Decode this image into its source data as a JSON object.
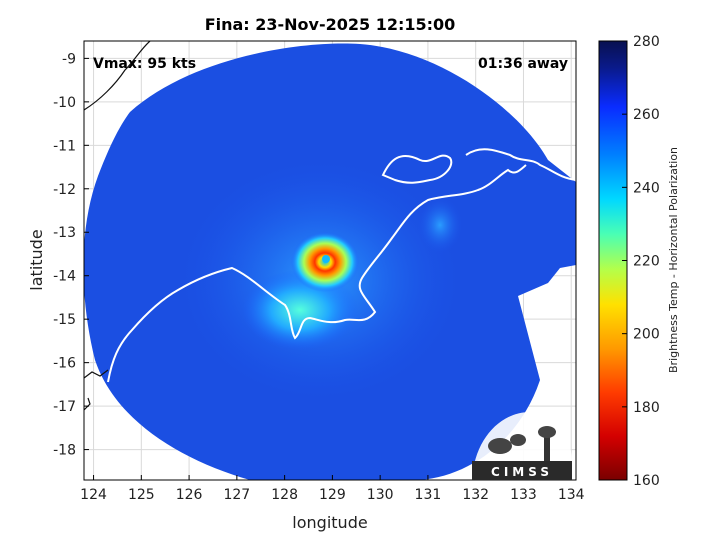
{
  "title": "Fina: 23-Nov-2025 12:15:00",
  "annotations": {
    "vmax": "Vmax: 95 kts",
    "eta": "01:36 away"
  },
  "axes": {
    "xlabel": "longitude",
    "ylabel": "latitude",
    "xticks": [
      "124",
      "125",
      "126",
      "127",
      "128",
      "129",
      "130",
      "131",
      "132",
      "133",
      "134"
    ],
    "yticks": [
      "-9",
      "-10",
      "-11",
      "-12",
      "-13",
      "-14",
      "-15",
      "-16",
      "-17",
      "-18"
    ],
    "xlim": [
      123.8,
      134.1
    ],
    "ylim": [
      -18.7,
      -8.6
    ]
  },
  "colorbar": {
    "label": "Brightness Temp - Horizontal Polarization",
    "ticks": [
      "280",
      "260",
      "240",
      "220",
      "200",
      "180",
      "160"
    ],
    "range": [
      160,
      280
    ],
    "colors": [
      "#7a0000",
      "#d40000",
      "#ff3c00",
      "#ff9a00",
      "#ffe100",
      "#b4ff4a",
      "#4affb4",
      "#00d8ff",
      "#0080ff",
      "#0a2cff",
      "#0a1a8a",
      "#081050"
    ]
  },
  "logo": {
    "text": "CIMSS"
  },
  "storm": {
    "name": "Fina",
    "center_lon": 128.9,
    "center_lat": -13.6
  },
  "colors": {
    "background_bt": "#1a4fe0",
    "coast": "#ffffff",
    "frame": "#000000"
  }
}
